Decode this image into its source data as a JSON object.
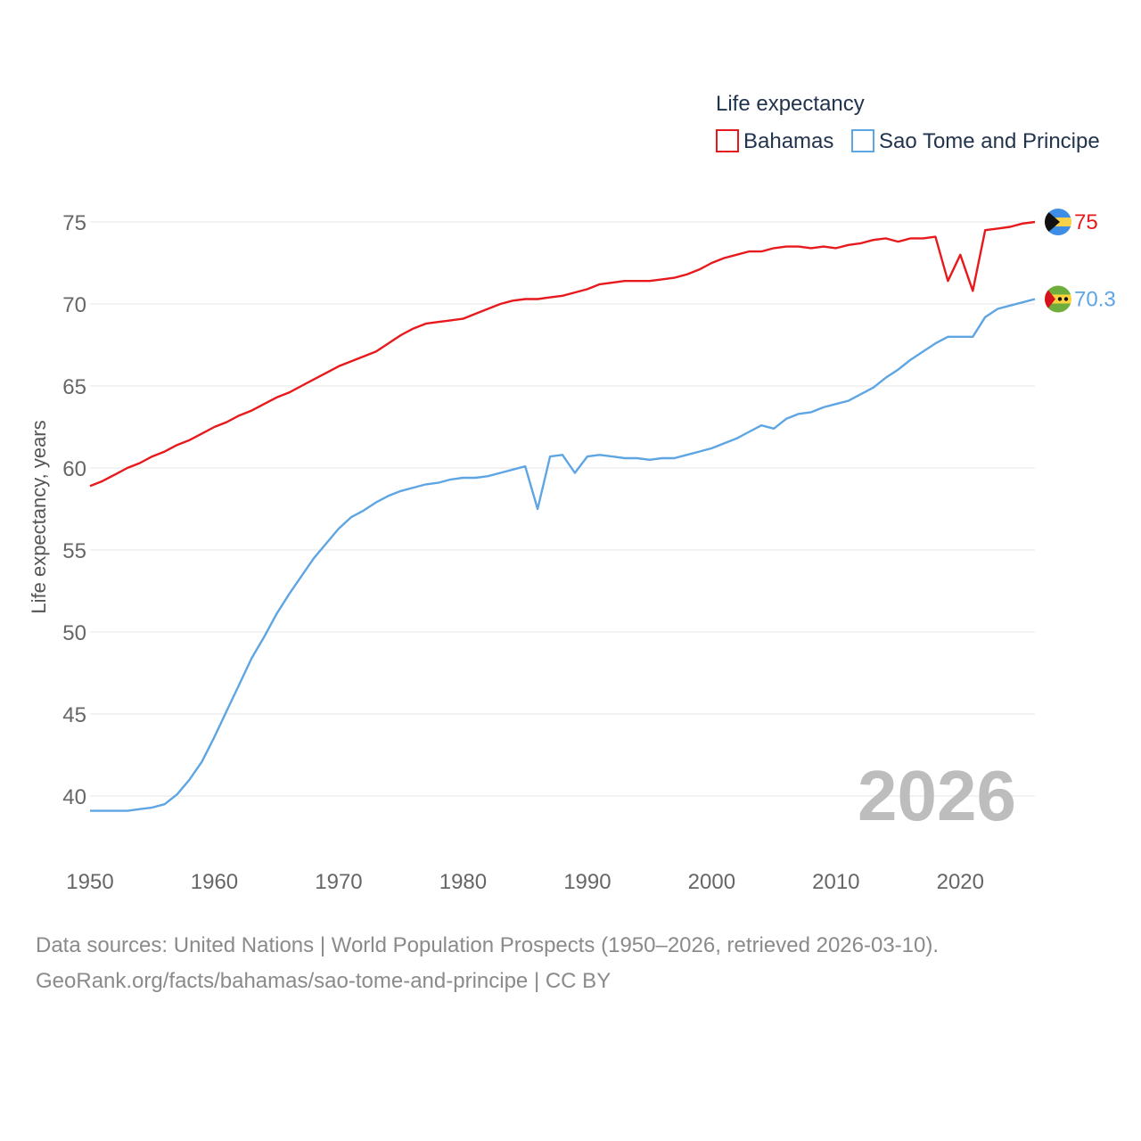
{
  "chart_data": {
    "type": "line",
    "legend_title": "Life expectancy",
    "ylabel": "Life expectancy, years",
    "xlim": [
      1950,
      2026
    ],
    "ylim": [
      38,
      77
    ],
    "yticks": [
      40,
      45,
      50,
      55,
      60,
      65,
      70,
      75
    ],
    "xticks": [
      1950,
      1960,
      1970,
      1980,
      1990,
      2000,
      2010,
      2020
    ],
    "year_label": "2026",
    "series": [
      {
        "name": "Bahamas",
        "color": "#e8191c",
        "end_label": "75",
        "flag": "bahamas-flag-icon",
        "points": [
          [
            1950,
            58.9
          ],
          [
            1951,
            59.2
          ],
          [
            1952,
            59.6
          ],
          [
            1953,
            60.0
          ],
          [
            1954,
            60.3
          ],
          [
            1955,
            60.7
          ],
          [
            1956,
            61.0
          ],
          [
            1957,
            61.4
          ],
          [
            1958,
            61.7
          ],
          [
            1959,
            62.1
          ],
          [
            1960,
            62.5
          ],
          [
            1961,
            62.8
          ],
          [
            1962,
            63.2
          ],
          [
            1963,
            63.5
          ],
          [
            1964,
            63.9
          ],
          [
            1965,
            64.3
          ],
          [
            1966,
            64.6
          ],
          [
            1967,
            65.0
          ],
          [
            1968,
            65.4
          ],
          [
            1969,
            65.8
          ],
          [
            1970,
            66.2
          ],
          [
            1971,
            66.5
          ],
          [
            1972,
            66.8
          ],
          [
            1973,
            67.1
          ],
          [
            1974,
            67.6
          ],
          [
            1975,
            68.1
          ],
          [
            1976,
            68.5
          ],
          [
            1977,
            68.8
          ],
          [
            1978,
            68.9
          ],
          [
            1979,
            69.0
          ],
          [
            1980,
            69.1
          ],
          [
            1981,
            69.4
          ],
          [
            1982,
            69.7
          ],
          [
            1983,
            70.0
          ],
          [
            1984,
            70.2
          ],
          [
            1985,
            70.3
          ],
          [
            1986,
            70.3
          ],
          [
            1987,
            70.4
          ],
          [
            1988,
            70.5
          ],
          [
            1989,
            70.7
          ],
          [
            1990,
            70.9
          ],
          [
            1991,
            71.2
          ],
          [
            1992,
            71.3
          ],
          [
            1993,
            71.4
          ],
          [
            1994,
            71.4
          ],
          [
            1995,
            71.4
          ],
          [
            1996,
            71.5
          ],
          [
            1997,
            71.6
          ],
          [
            1998,
            71.8
          ],
          [
            1999,
            72.1
          ],
          [
            2000,
            72.5
          ],
          [
            2001,
            72.8
          ],
          [
            2002,
            73.0
          ],
          [
            2003,
            73.2
          ],
          [
            2004,
            73.2
          ],
          [
            2005,
            73.4
          ],
          [
            2006,
            73.5
          ],
          [
            2007,
            73.5
          ],
          [
            2008,
            73.4
          ],
          [
            2009,
            73.5
          ],
          [
            2010,
            73.4
          ],
          [
            2011,
            73.6
          ],
          [
            2012,
            73.7
          ],
          [
            2013,
            73.9
          ],
          [
            2014,
            74.0
          ],
          [
            2015,
            73.8
          ],
          [
            2016,
            74.0
          ],
          [
            2017,
            74.0
          ],
          [
            2018,
            74.1
          ],
          [
            2019,
            71.4
          ],
          [
            2020,
            73.0
          ],
          [
            2021,
            70.8
          ],
          [
            2022,
            74.5
          ],
          [
            2023,
            74.6
          ],
          [
            2024,
            74.7
          ],
          [
            2025,
            74.9
          ],
          [
            2026,
            75.0
          ]
        ]
      },
      {
        "name": "Sao Tome and Principe",
        "color": "#5ea5e3",
        "end_label": "70.3",
        "flag": "sao-tome-flag-icon",
        "points": [
          [
            1950,
            39.1
          ],
          [
            1951,
            39.1
          ],
          [
            1952,
            39.1
          ],
          [
            1953,
            39.1
          ],
          [
            1954,
            39.2
          ],
          [
            1955,
            39.3
          ],
          [
            1956,
            39.5
          ],
          [
            1957,
            40.1
          ],
          [
            1958,
            41.0
          ],
          [
            1959,
            42.1
          ],
          [
            1960,
            43.6
          ],
          [
            1961,
            45.2
          ],
          [
            1962,
            46.8
          ],
          [
            1963,
            48.4
          ],
          [
            1964,
            49.7
          ],
          [
            1965,
            51.1
          ],
          [
            1966,
            52.3
          ],
          [
            1967,
            53.4
          ],
          [
            1968,
            54.5
          ],
          [
            1969,
            55.4
          ],
          [
            1970,
            56.3
          ],
          [
            1971,
            57.0
          ],
          [
            1972,
            57.4
          ],
          [
            1973,
            57.9
          ],
          [
            1974,
            58.3
          ],
          [
            1975,
            58.6
          ],
          [
            1976,
            58.8
          ],
          [
            1977,
            59.0
          ],
          [
            1978,
            59.1
          ],
          [
            1979,
            59.3
          ],
          [
            1980,
            59.4
          ],
          [
            1981,
            59.4
          ],
          [
            1982,
            59.5
          ],
          [
            1983,
            59.7
          ],
          [
            1984,
            59.9
          ],
          [
            1985,
            60.1
          ],
          [
            1986,
            57.5
          ],
          [
            1987,
            60.7
          ],
          [
            1988,
            60.8
          ],
          [
            1989,
            59.7
          ],
          [
            1990,
            60.7
          ],
          [
            1991,
            60.8
          ],
          [
            1992,
            60.7
          ],
          [
            1993,
            60.6
          ],
          [
            1994,
            60.6
          ],
          [
            1995,
            60.5
          ],
          [
            1996,
            60.6
          ],
          [
            1997,
            60.6
          ],
          [
            1998,
            60.8
          ],
          [
            1999,
            61.0
          ],
          [
            2000,
            61.2
          ],
          [
            2001,
            61.5
          ],
          [
            2002,
            61.8
          ],
          [
            2003,
            62.2
          ],
          [
            2004,
            62.6
          ],
          [
            2005,
            62.4
          ],
          [
            2006,
            63.0
          ],
          [
            2007,
            63.3
          ],
          [
            2008,
            63.4
          ],
          [
            2009,
            63.7
          ],
          [
            2010,
            63.9
          ],
          [
            2011,
            64.1
          ],
          [
            2012,
            64.5
          ],
          [
            2013,
            64.9
          ],
          [
            2014,
            65.5
          ],
          [
            2015,
            66.0
          ],
          [
            2016,
            66.6
          ],
          [
            2017,
            67.1
          ],
          [
            2018,
            67.6
          ],
          [
            2019,
            68.0
          ],
          [
            2020,
            68.0
          ],
          [
            2021,
            68.0
          ],
          [
            2022,
            69.2
          ],
          [
            2023,
            69.7
          ],
          [
            2024,
            69.9
          ],
          [
            2025,
            70.1
          ],
          [
            2026,
            70.3
          ]
        ]
      }
    ]
  },
  "footer": {
    "source_line_1": "Data sources: United Nations | World Population Prospects (1950–2026, retrieved 2026-03-10).",
    "source_line_2": "GeoRank.org/facts/bahamas/sao-tome-and-principe | CC BY"
  }
}
